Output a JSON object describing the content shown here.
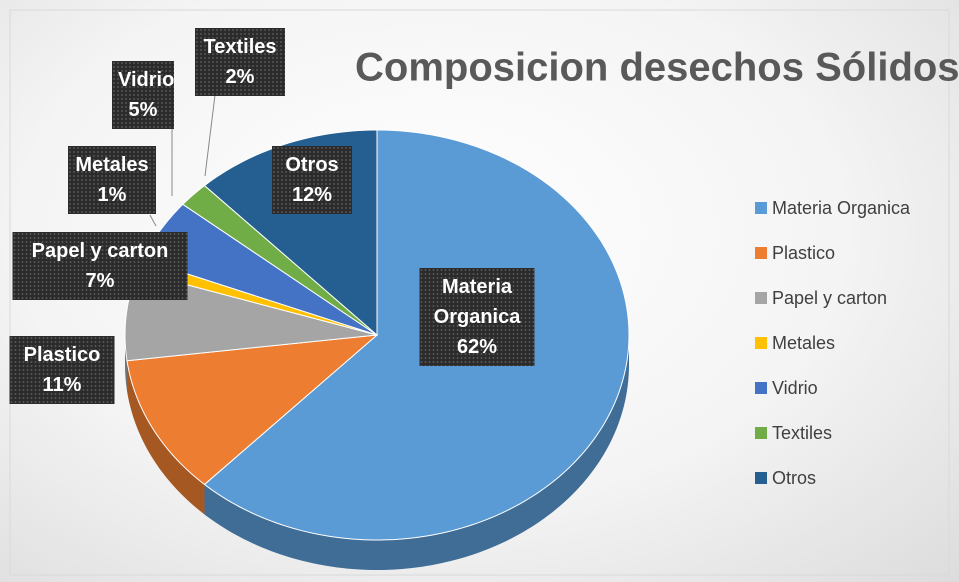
{
  "chart_data": {
    "type": "pie3d",
    "title": "Composicion desechos Sólidos",
    "categories": [
      "Materia Organica",
      "Plastico",
      "Papel y carton",
      "Metales",
      "Vidrio",
      "Textiles",
      "Otros"
    ],
    "values": [
      62,
      11,
      7,
      1,
      5,
      2,
      12
    ],
    "value_labels": [
      "62%",
      "11%",
      "7%",
      "1%",
      "5%",
      "2%",
      "12%"
    ],
    "colors": [
      "#5b9bd5",
      "#ed7d31",
      "#a5a5a5",
      "#ffc000",
      "#4472c4",
      "#70ad47",
      "#255e91"
    ],
    "legend": "right"
  }
}
